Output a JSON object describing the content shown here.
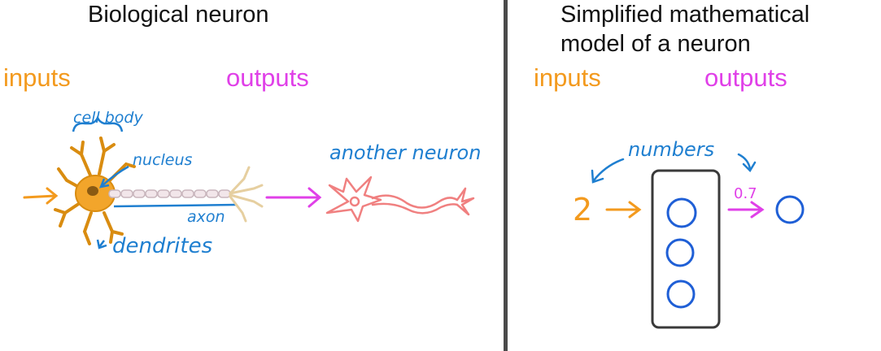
{
  "left": {
    "title": "Biological neuron",
    "inputs_label": "inputs",
    "outputs_label": "outputs",
    "cell_body_label": "cell body",
    "nucleus_label": "nucleus",
    "axon_label": "axon",
    "dendrites_label": "dendrites",
    "another_neuron_label": "another neuron"
  },
  "right": {
    "title_line1": "Simplified mathematical",
    "title_line2": "model of a neuron",
    "inputs_label": "inputs",
    "outputs_label": "outputs",
    "numbers_label": "numbers",
    "input_value": "2",
    "output_value": "0.7"
  },
  "colors": {
    "inputs": "#f39a1e",
    "outputs": "#e040e8",
    "annotation": "#1f7fd0",
    "divider": "#4a4a4a"
  }
}
